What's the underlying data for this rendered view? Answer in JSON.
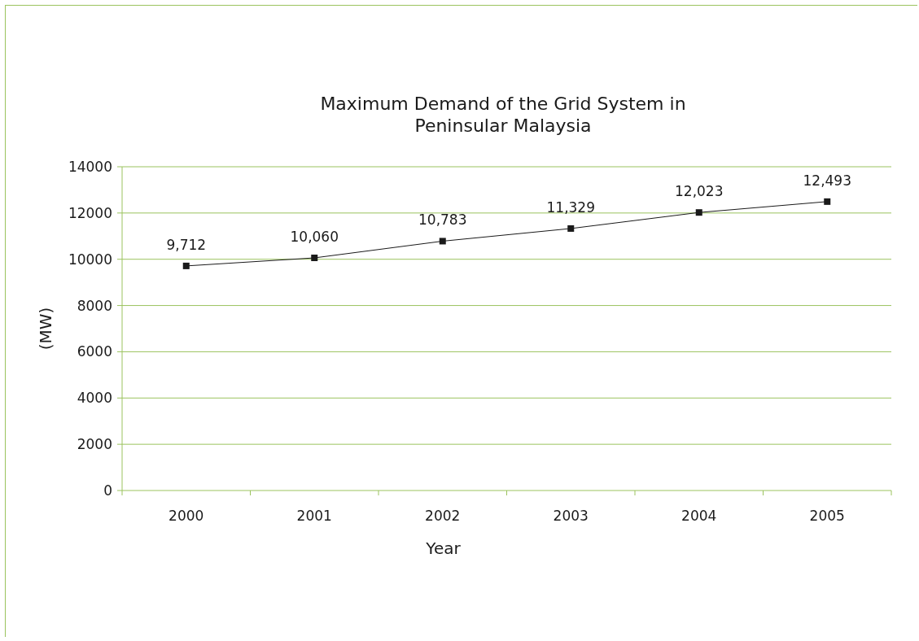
{
  "chart_data": {
    "type": "line",
    "title": "Maximum Demand of the Grid System in\nPeninsular Malaysia",
    "xlabel": "Year",
    "ylabel": "(MW)",
    "categories": [
      "2000",
      "2001",
      "2002",
      "2003",
      "2004",
      "2005"
    ],
    "series": [
      {
        "color": "#1a1a1a",
        "values": [
          9712,
          10060,
          10783,
          11329,
          12023,
          12493
        ],
        "value_labels": [
          "9,712",
          "10,060",
          "10,783",
          "11,329",
          "12,023",
          "12,493"
        ]
      }
    ],
    "ylim": [
      0,
      14000
    ],
    "yticks": [
      0,
      2000,
      4000,
      6000,
      8000,
      10000,
      12000,
      14000
    ],
    "grid": "y",
    "marker": "square",
    "line_style": "solid"
  }
}
